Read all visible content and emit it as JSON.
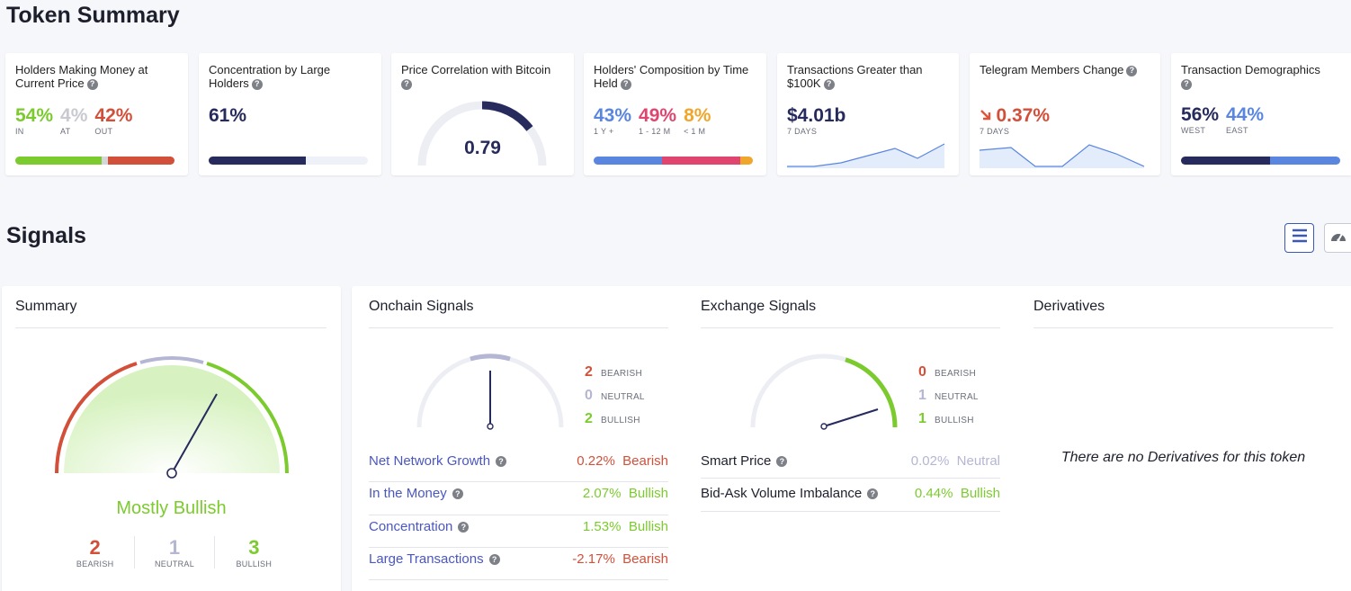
{
  "token_summary": {
    "heading": "Token Summary",
    "holders_money": {
      "title": "Holders Making Money at Current Price",
      "in_val": "54%",
      "in_lbl": "IN",
      "at_val": "4%",
      "at_lbl": "AT",
      "out_val": "42%",
      "out_lbl": "OUT",
      "bar": [
        54,
        4,
        42
      ]
    },
    "concentration": {
      "title": "Concentration by Large Holders",
      "value": "61%",
      "bar": 61
    },
    "correlation": {
      "title": "Price Correlation with Bitcoin",
      "value": "0.79",
      "gauge": 0.79
    },
    "composition": {
      "title": "Holders' Composition by Time Held",
      "a_val": "43%",
      "a_lbl": "1 Y +",
      "b_val": "49%",
      "b_lbl": "1 - 12 M",
      "c_val": "8%",
      "c_lbl": "< 1 M",
      "bar": [
        43,
        49,
        8
      ]
    },
    "transactions": {
      "title": "Transactions Greater than $100K",
      "value": "$4.01b",
      "sub": "7 DAYS"
    },
    "telegram": {
      "title": "Telegram Members Change",
      "value": "0.37%",
      "sub": "7 DAYS"
    },
    "demographics": {
      "title": "Transaction Demographics",
      "west_val": "56%",
      "west_lbl": "WEST",
      "east_val": "44%",
      "east_lbl": "EAST",
      "bar": [
        56,
        44
      ]
    }
  },
  "signals": {
    "heading": "Signals",
    "summary": {
      "title": "Summary",
      "verdict": "Mostly Bullish",
      "bearish": "2",
      "bearish_lbl": "BEARISH",
      "neutral": "1",
      "neutral_lbl": "NEUTRAL",
      "bullish": "3",
      "bullish_lbl": "BULLISH"
    },
    "onchain": {
      "title": "Onchain Signals",
      "bearish": "2",
      "neutral": "0",
      "bullish": "2",
      "bearish_lbl": "BEARISH",
      "neutral_lbl": "NEUTRAL",
      "bullish_lbl": "BULLISH",
      "rows": [
        {
          "label": "Net Network Growth",
          "pct": "0.22%",
          "sig": "Bearish"
        },
        {
          "label": "In the Money",
          "pct": "2.07%",
          "sig": "Bullish"
        },
        {
          "label": "Concentration",
          "pct": "1.53%",
          "sig": "Bullish"
        },
        {
          "label": "Large Transactions",
          "pct": "-2.17%",
          "sig": "Bearish"
        }
      ]
    },
    "exchange": {
      "title": "Exchange Signals",
      "bearish": "0",
      "neutral": "1",
      "bullish": "1",
      "bearish_lbl": "BEARISH",
      "neutral_lbl": "NEUTRAL",
      "bullish_lbl": "BULLISH",
      "rows": [
        {
          "label": "Smart Price",
          "pct": "0.02%",
          "sig": "Neutral"
        },
        {
          "label": "Bid-Ask Volume Imbalance",
          "pct": "0.44%",
          "sig": "Bullish"
        }
      ]
    },
    "derivatives": {
      "title": "Derivatives",
      "empty": "There are no Derivatives for this token"
    }
  },
  "icons": {
    "help": "question-icon",
    "list_view": "list-icon",
    "gauge_view": "speedometer-icon",
    "trend_down": "arrow-down-right-icon"
  },
  "colors": {
    "green": "#7ccb2e",
    "red": "#d2503a",
    "navy": "#262a5c",
    "blue": "#5a86e0",
    "pink": "#e0456f",
    "orange": "#f0a62a",
    "grey": "#c9cad0"
  }
}
